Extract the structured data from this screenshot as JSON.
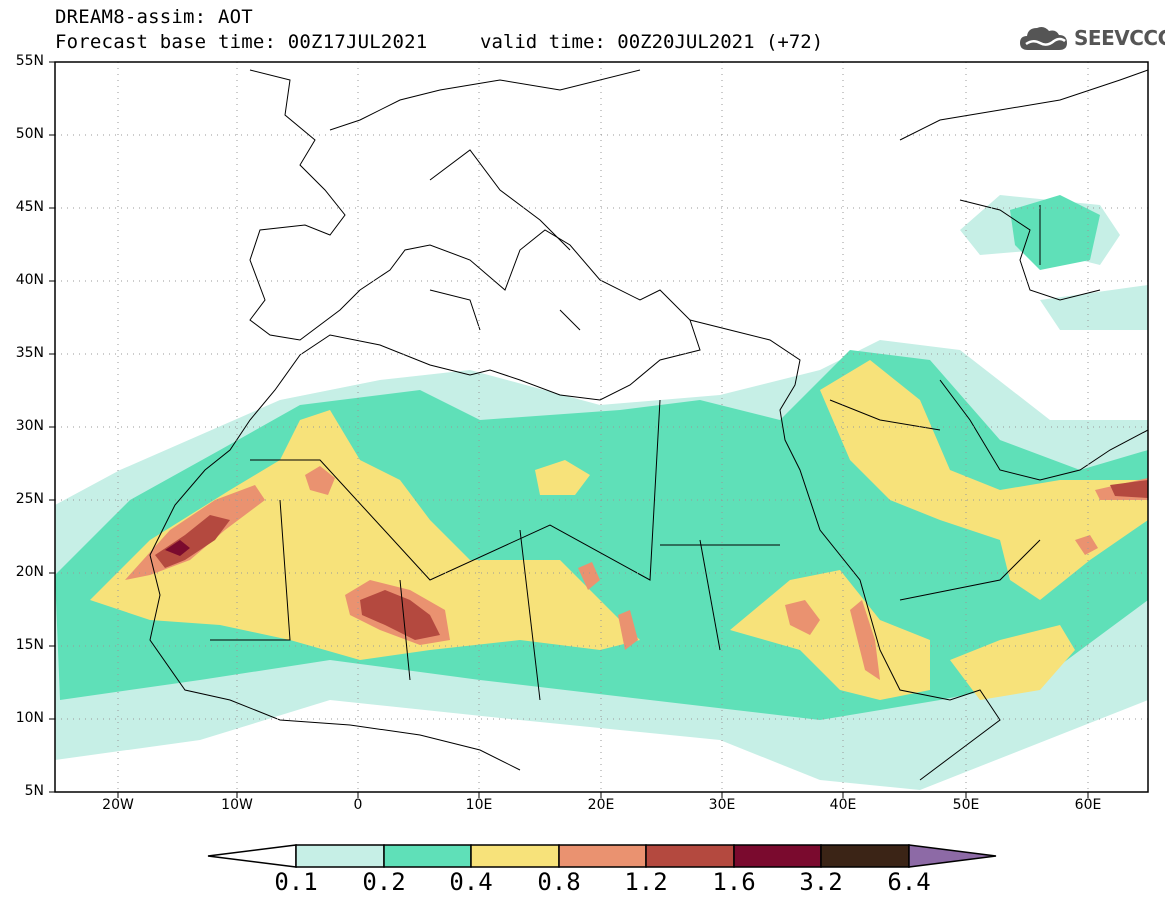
{
  "header": {
    "model_line": "DREAM8-assim: AOT",
    "base_time": "Forecast base time: 00Z17JUL2021",
    "valid_time": "valid time: 00Z20JUL2021 (+72)"
  },
  "logo": {
    "text": "SEEVCCC",
    "icon": "cloud-icon"
  },
  "map": {
    "lat_labels": [
      "55N",
      "50N",
      "45N",
      "40N",
      "35N",
      "30N",
      "25N",
      "20N",
      "15N",
      "10N",
      "5N"
    ],
    "lon_labels": [
      "20W",
      "10W",
      "0",
      "10E",
      "20E",
      "30E",
      "40E",
      "50E",
      "60E"
    ],
    "lon_range": [
      -25,
      65
    ],
    "lat_range": [
      5,
      55
    ]
  },
  "colorbar": {
    "labels": [
      "0.1",
      "0.2",
      "0.4",
      "0.8",
      "1.2",
      "1.6",
      "3.2",
      "6.4"
    ],
    "colors": [
      "#ffffff",
      "#c6efe6",
      "#5fe0b8",
      "#f7e27a",
      "#ea9270",
      "#b4493f",
      "#7a0a2e",
      "#3b2416",
      "#8d6aa6"
    ]
  }
}
